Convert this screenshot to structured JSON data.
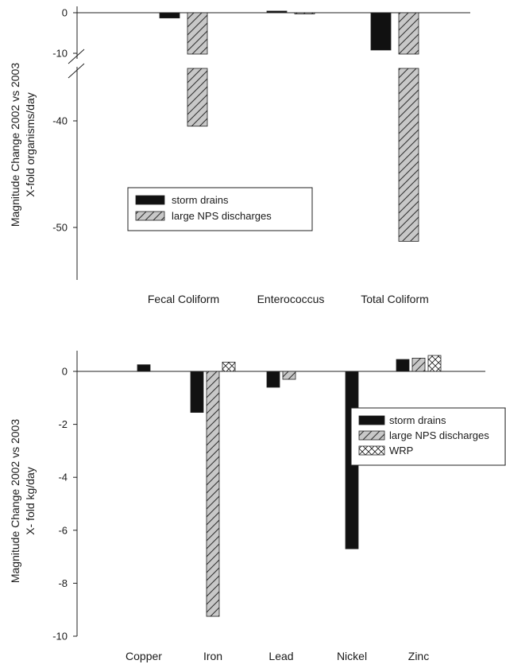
{
  "chart_data": [
    {
      "type": "bar",
      "title": "",
      "ylabel_lines": [
        "Magnitude Change 2002 vs 2003",
        "X-fold organisms/day"
      ],
      "y_axis_break": [
        -10,
        -35
      ],
      "yticks": [
        "0",
        "-10",
        "-40",
        "-50"
      ],
      "ytick_values": [
        0,
        -10,
        -40,
        -50
      ],
      "categories": [
        "Fecal Coliform",
        "Enterococcus",
        "Total Coliform"
      ],
      "series": [
        {
          "name": "storm drains",
          "values": [
            -1.3,
            0.4,
            -9.2
          ]
        },
        {
          "name": "large NPS discharges",
          "values": [
            -40.5,
            -0.3,
            -51.3
          ]
        }
      ],
      "legend_position": "center-left",
      "colors": {
        "storm drains": "#111111",
        "large NPS discharges": "#c8c8c8"
      }
    },
    {
      "type": "bar",
      "title": "",
      "ylabel_lines": [
        "Magnitude Change 2002 vs 2003",
        "X- fold kg/day"
      ],
      "ylim": [
        -10,
        0.7
      ],
      "yticks": [
        "0",
        "-2",
        "-4",
        "-6",
        "-8",
        "-10"
      ],
      "ytick_values": [
        0,
        -2,
        -4,
        -6,
        -8,
        -10
      ],
      "categories": [
        "Copper",
        "Iron",
        "Lead",
        "Nickel",
        "Zinc"
      ],
      "series": [
        {
          "name": "storm drains",
          "values": [
            0.25,
            -1.55,
            -0.6,
            -6.7,
            0.45
          ]
        },
        {
          "name": "large NPS discharges",
          "values": [
            null,
            -9.25,
            -0.3,
            null,
            0.5
          ]
        },
        {
          "name": "WRP",
          "values": [
            null,
            0.35,
            null,
            null,
            0.6
          ]
        }
      ],
      "legend_position": "right",
      "colors": {
        "storm drains": "#111111",
        "large NPS discharges": "#c8c8c8",
        "WRP": "#ffffff"
      }
    }
  ]
}
